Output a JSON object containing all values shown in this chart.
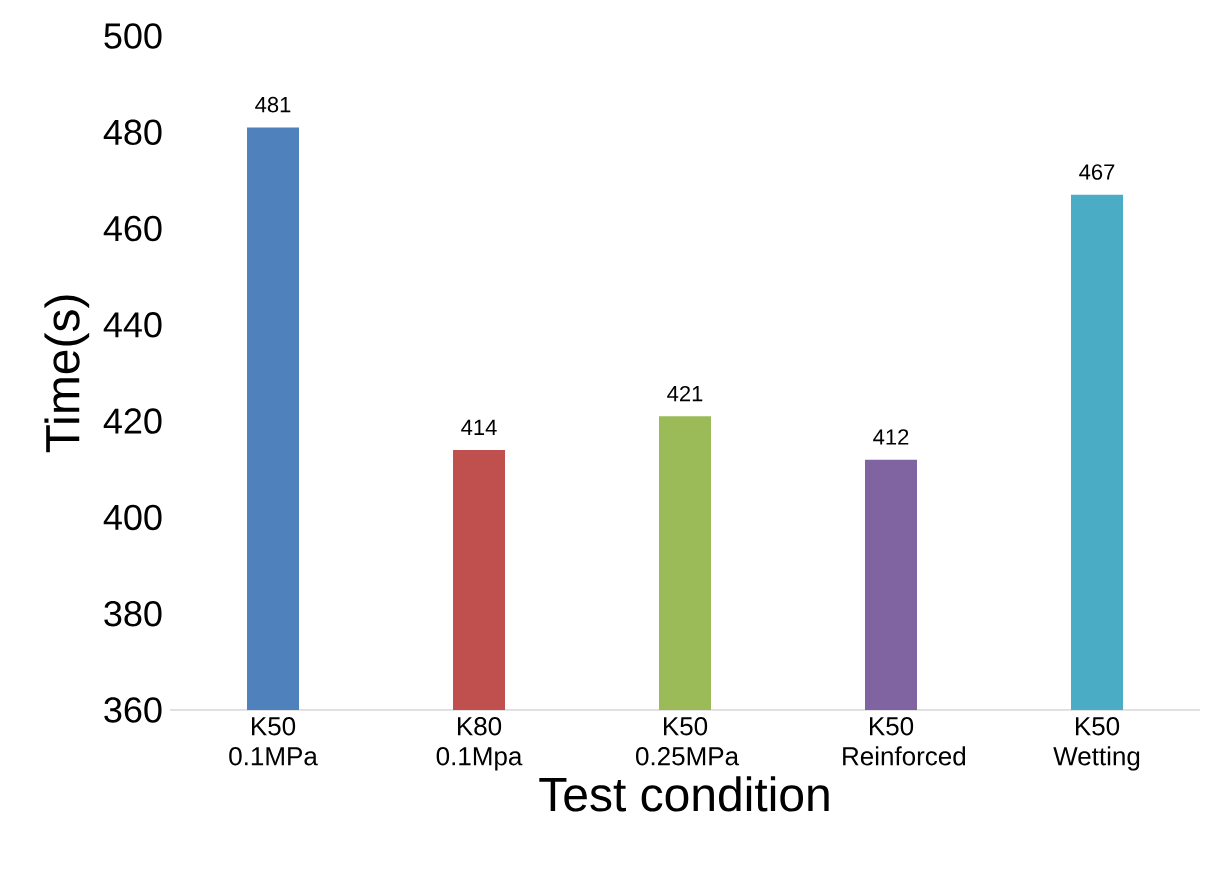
{
  "chart_data": {
    "type": "bar",
    "categories": [
      "K50 0.1MPa",
      "K80 0.1Mpa",
      "K50 0.25MPa",
      "K50 Reinforced",
      "K50 Wetting"
    ],
    "values": [
      481,
      414,
      421,
      412,
      467
    ],
    "colors": [
      "#4f81bd",
      "#c0504d",
      "#9bbb59",
      "#8064a2",
      "#4bacc6"
    ],
    "xlabel": "Test condition",
    "ylabel": "Time(s)",
    "ylim": [
      360,
      500
    ],
    "yticks": [
      360,
      380,
      400,
      420,
      440,
      460,
      480,
      500
    ],
    "data_labels": true,
    "grid": false
  }
}
